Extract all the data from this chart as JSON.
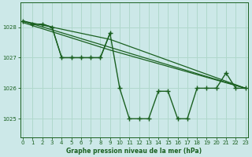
{
  "title": "Graphe pression niveau de la mer (hPa)",
  "bg_color": "#cce8e8",
  "grid_color": "#b0d8cc",
  "line_color": "#1a6020",
  "x_ticks": [
    0,
    1,
    2,
    3,
    4,
    5,
    6,
    7,
    8,
    9,
    10,
    11,
    12,
    13,
    14,
    15,
    16,
    17,
    18,
    19,
    20,
    21,
    22,
    23
  ],
  "y_ticks": [
    1025,
    1026,
    1027,
    1028
  ],
  "ylim": [
    1024.4,
    1028.8
  ],
  "xlim": [
    -0.3,
    23.3
  ],
  "series1": [
    1028.2,
    1028.1,
    1028.1,
    1028.0,
    1027.0,
    1027.0,
    1027.0,
    1027.0,
    1027.0,
    1027.8,
    1026.0,
    1025.0,
    1025.0,
    1025.0,
    1025.9,
    1025.9,
    1025.0,
    1025.0,
    1026.0,
    1026.0,
    1026.0,
    1026.5,
    1026.0,
    1026.0
  ],
  "trend1_x": [
    0,
    23
  ],
  "trend1_y": [
    1028.2,
    1026.0
  ],
  "trend2_x": [
    0,
    9,
    23
  ],
  "trend2_y": [
    1028.2,
    1027.6,
    1026.0
  ],
  "trend3_x": [
    0,
    9,
    23
  ],
  "trend3_y": [
    1028.15,
    1027.25,
    1026.0
  ],
  "partial_x": [
    0,
    1,
    2,
    3,
    4,
    5,
    6,
    7,
    8,
    9
  ],
  "partial_y": [
    1028.2,
    1028.1,
    1028.1,
    1028.0,
    1027.0,
    1027.0,
    1027.0,
    1027.0,
    1027.0,
    1027.8
  ]
}
